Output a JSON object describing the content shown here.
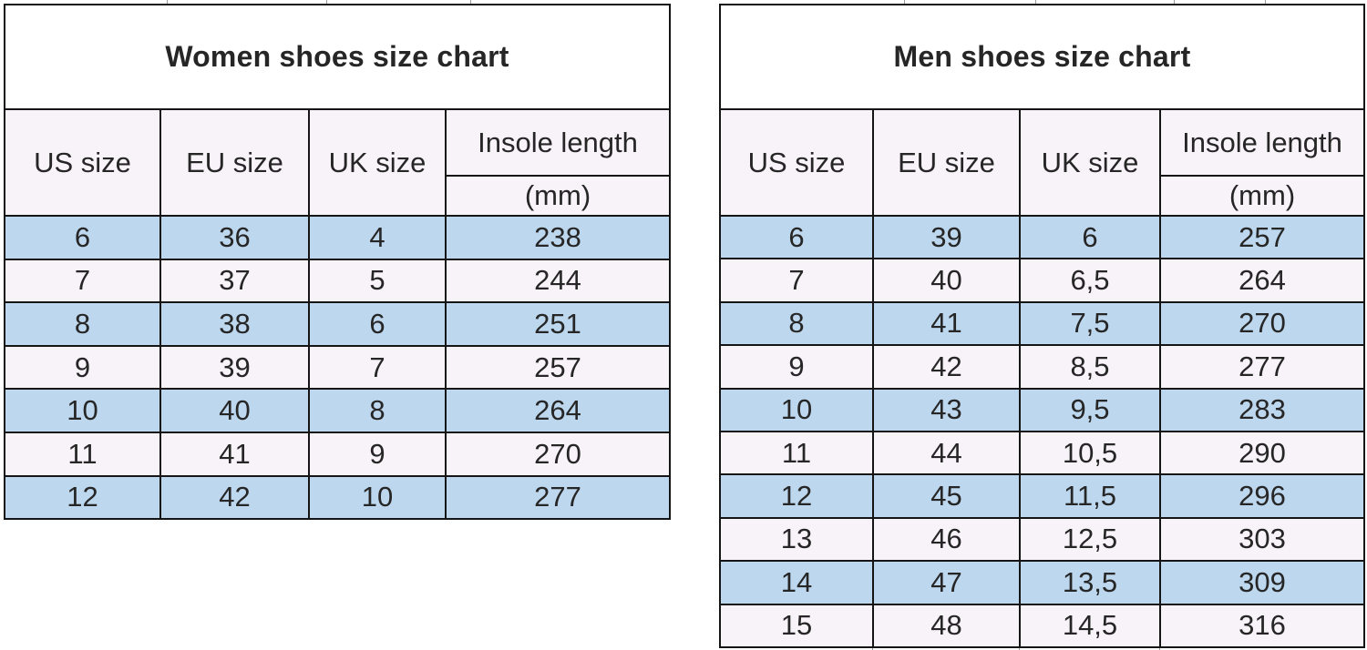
{
  "colors": {
    "row-blue": "#BDD7EE",
    "row-light": "#F8F3F9",
    "title-bg": "#FFFFFF",
    "grid-border": "#151515",
    "text": "#262626",
    "remnant-line": "#9B9B9B"
  },
  "tables": [
    {
      "title": "Women shoes size chart",
      "headers": [
        "US size",
        "EU size",
        "UK size"
      ],
      "insole_header": "Insole length",
      "insole_unit": "(mm)",
      "rows": [
        [
          "6",
          "36",
          "4",
          "238"
        ],
        [
          "7",
          "37",
          "5",
          "244"
        ],
        [
          "8",
          "38",
          "6",
          "251"
        ],
        [
          "9",
          "39",
          "7",
          "257"
        ],
        [
          "10",
          "40",
          "8",
          "264"
        ],
        [
          "11",
          "41",
          "9",
          "270"
        ],
        [
          "12",
          "42",
          "10",
          "277"
        ]
      ]
    },
    {
      "title": "Men shoes size chart",
      "headers": [
        "US size",
        "EU size",
        "UK size"
      ],
      "insole_header": "Insole length",
      "insole_unit": "(mm)",
      "rows": [
        [
          "6",
          "39",
          "6",
          "257"
        ],
        [
          "7",
          "40",
          "6,5",
          "264"
        ],
        [
          "8",
          "41",
          "7,5",
          "270"
        ],
        [
          "9",
          "42",
          "8,5",
          "277"
        ],
        [
          "10",
          "43",
          "9,5",
          "283"
        ],
        [
          "11",
          "44",
          "10,5",
          "290"
        ],
        [
          "12",
          "45",
          "11,5",
          "296"
        ],
        [
          "13",
          "46",
          "12,5",
          "303"
        ],
        [
          "14",
          "47",
          "13,5",
          "309"
        ],
        [
          "15",
          "48",
          "14,5",
          "316"
        ]
      ]
    }
  ]
}
